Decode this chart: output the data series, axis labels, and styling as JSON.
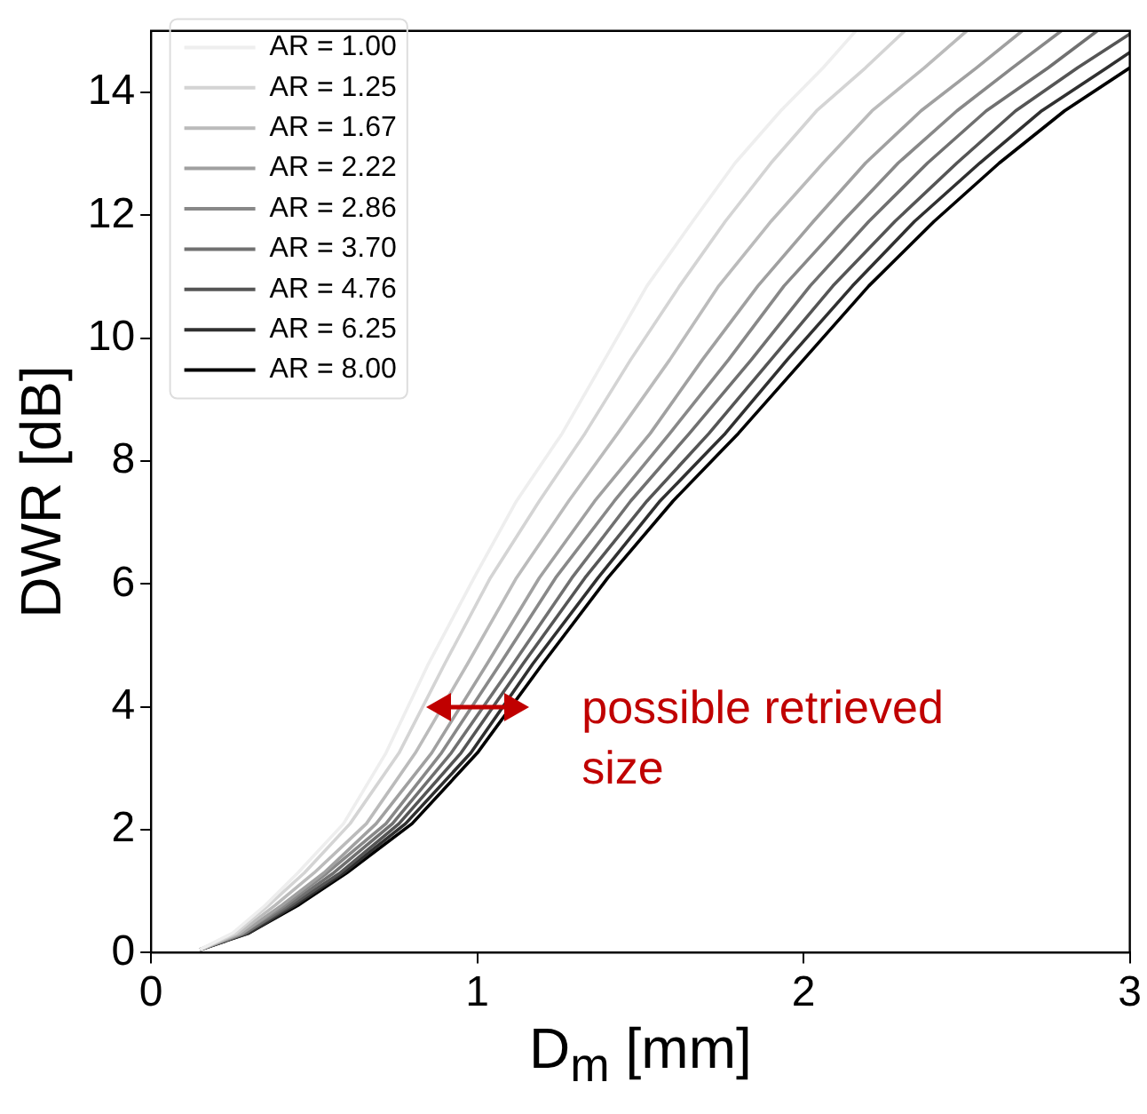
{
  "chart_data": {
    "type": "line",
    "xlabel": "D$_{m}$ [mm]",
    "ylabel": "DWR [dB]",
    "xlim": [
      0,
      3
    ],
    "xticks": [
      0,
      1,
      2,
      3
    ],
    "ylim": [
      0,
      15
    ],
    "yticks": [
      0,
      2,
      4,
      6,
      8,
      10,
      12,
      14
    ],
    "grid": false,
    "legend": "top left",
    "marker": "none",
    "line_style": "solid",
    "annotations": [
      "possible retrieved size"
    ],
    "series": [
      {
        "name": "AR = 1.00",
        "color": "#eeeeee",
        "x": [
          0.15,
          0.25,
          0.35,
          0.45,
          0.59,
          0.72,
          0.85,
          0.99,
          1.12,
          1.26,
          1.39,
          1.52,
          1.66,
          1.79,
          1.93,
          2.06,
          2.16
        ],
        "values": [
          0.05,
          0.32,
          0.77,
          1.3,
          2.1,
          3.25,
          4.7,
          6.1,
          7.35,
          8.45,
          9.65,
          10.85,
          11.9,
          12.85,
          13.7,
          14.4,
          15
        ]
      },
      {
        "name": "AR = 1.25",
        "color": "#d4d4d4",
        "x": [
          0.15,
          0.26,
          0.36,
          0.47,
          0.61,
          0.76,
          0.9,
          1.04,
          1.19,
          1.33,
          1.47,
          1.62,
          1.76,
          1.9,
          2.04,
          2.19,
          2.31
        ],
        "values": [
          0.05,
          0.32,
          0.77,
          1.3,
          2.1,
          3.25,
          4.7,
          6.1,
          7.35,
          8.45,
          9.65,
          10.85,
          11.9,
          12.85,
          13.7,
          14.4,
          15
        ]
      },
      {
        "name": "AR = 1.67",
        "color": "#bbbbbb",
        "x": [
          0.15,
          0.27,
          0.38,
          0.5,
          0.66,
          0.81,
          0.97,
          1.12,
          1.28,
          1.43,
          1.59,
          1.74,
          1.9,
          2.06,
          2.21,
          2.37,
          2.5
        ],
        "values": [
          0.05,
          0.32,
          0.77,
          1.3,
          2.1,
          3.25,
          4.7,
          6.1,
          7.35,
          8.45,
          9.65,
          10.85,
          11.9,
          12.85,
          13.7,
          14.4,
          15
        ]
      },
      {
        "name": "AR = 2.22",
        "color": "#a0a0a0",
        "x": [
          0.15,
          0.28,
          0.4,
          0.53,
          0.69,
          0.86,
          1.03,
          1.19,
          1.36,
          1.53,
          1.69,
          1.86,
          2.03,
          2.19,
          2.36,
          2.53,
          2.67
        ],
        "values": [
          0.05,
          0.32,
          0.77,
          1.3,
          2.1,
          3.25,
          4.7,
          6.1,
          7.35,
          8.45,
          9.65,
          10.85,
          11.9,
          12.85,
          13.7,
          14.4,
          15
        ]
      },
      {
        "name": "AR = 2.86",
        "color": "#888888",
        "x": [
          0.15,
          0.28,
          0.41,
          0.54,
          0.72,
          0.89,
          1.07,
          1.24,
          1.42,
          1.59,
          1.77,
          1.94,
          2.12,
          2.29,
          2.47,
          2.64,
          2.79
        ],
        "values": [
          0.05,
          0.32,
          0.77,
          1.3,
          2.1,
          3.25,
          4.7,
          6.1,
          7.35,
          8.45,
          9.65,
          10.85,
          11.9,
          12.85,
          13.7,
          14.4,
          15
        ]
      },
      {
        "name": "AR = 3.70",
        "color": "#707070",
        "x": [
          0.15,
          0.29,
          0.42,
          0.56,
          0.74,
          0.92,
          1.11,
          1.29,
          1.47,
          1.65,
          1.84,
          2.02,
          2.2,
          2.38,
          2.56,
          2.75,
          2.9
        ],
        "values": [
          0.05,
          0.32,
          0.77,
          1.3,
          2.1,
          3.25,
          4.7,
          6.1,
          7.35,
          8.45,
          9.65,
          10.85,
          11.9,
          12.85,
          13.7,
          14.4,
          15
        ]
      },
      {
        "name": "AR = 4.76",
        "color": "#555555",
        "x": [
          0.15,
          0.29,
          0.43,
          0.58,
          0.76,
          0.95,
          1.14,
          1.33,
          1.52,
          1.71,
          1.9,
          2.09,
          2.28,
          2.47,
          2.65,
          2.84,
          3.0
        ],
        "values": [
          0.05,
          0.32,
          0.77,
          1.3,
          2.1,
          3.25,
          4.7,
          6.1,
          7.35,
          8.45,
          9.65,
          10.85,
          11.9,
          12.85,
          13.7,
          14.4,
          14.95
        ]
      },
      {
        "name": "AR = 6.25",
        "color": "#303030",
        "x": [
          0.15,
          0.3,
          0.44,
          0.59,
          0.78,
          0.98,
          1.17,
          1.37,
          1.56,
          1.76,
          1.95,
          2.15,
          2.34,
          2.54,
          2.73,
          2.93,
          3.0
        ],
        "values": [
          0.05,
          0.32,
          0.77,
          1.3,
          2.1,
          3.25,
          4.7,
          6.1,
          7.35,
          8.45,
          9.65,
          10.85,
          11.9,
          12.85,
          13.7,
          14.4,
          14.65
        ]
      },
      {
        "name": "AR = 8.00",
        "color": "#000000",
        "x": [
          0.15,
          0.3,
          0.45,
          0.6,
          0.8,
          1.0,
          1.2,
          1.4,
          1.6,
          1.8,
          2.0,
          2.2,
          2.4,
          2.6,
          2.8,
          3.0
        ],
        "values": [
          0.05,
          0.32,
          0.77,
          1.3,
          2.1,
          3.25,
          4.7,
          6.1,
          7.35,
          8.45,
          9.65,
          10.85,
          11.9,
          12.85,
          13.7,
          14.4
        ]
      }
    ]
  }
}
